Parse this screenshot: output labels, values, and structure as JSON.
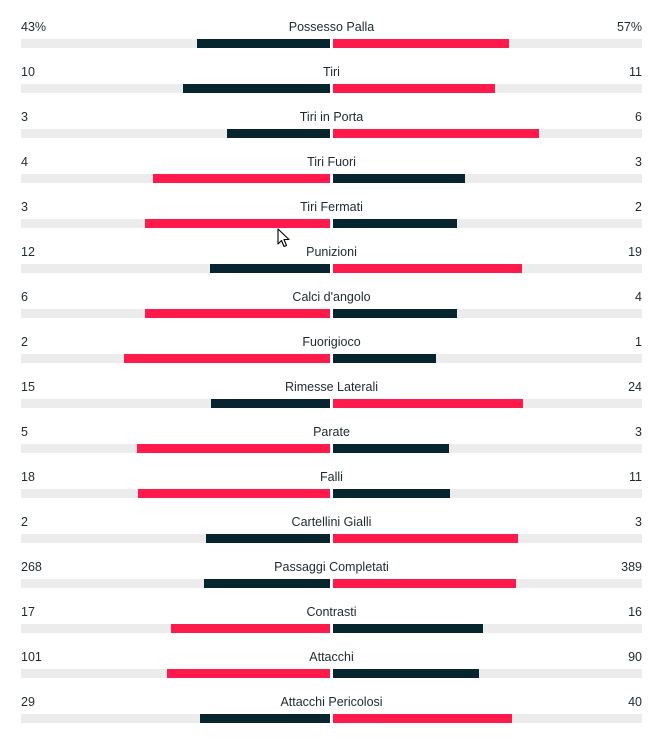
{
  "colors": {
    "leading": "#ff1a4b",
    "trailing": "#06252f",
    "track": "#ececec"
  },
  "stats": [
    {
      "label": "Possesso Palla",
      "home": "43%",
      "away": "57%",
      "home_value": 43,
      "away_value": 57
    },
    {
      "label": "Tiri",
      "home": "10",
      "away": "11",
      "home_value": 10,
      "away_value": 11
    },
    {
      "label": "Tiri in Porta",
      "home": "3",
      "away": "6",
      "home_value": 3,
      "away_value": 6
    },
    {
      "label": "Tiri Fuori",
      "home": "4",
      "away": "3",
      "home_value": 4,
      "away_value": 3
    },
    {
      "label": "Tiri Fermati",
      "home": "3",
      "away": "2",
      "home_value": 3,
      "away_value": 2
    },
    {
      "label": "Punizioni",
      "home": "12",
      "away": "19",
      "home_value": 12,
      "away_value": 19
    },
    {
      "label": "Calci d'angolo",
      "home": "6",
      "away": "4",
      "home_value": 6,
      "away_value": 4
    },
    {
      "label": "Fuorigioco",
      "home": "2",
      "away": "1",
      "home_value": 2,
      "away_value": 1
    },
    {
      "label": "Rimesse Laterali",
      "home": "15",
      "away": "24",
      "home_value": 15,
      "away_value": 24
    },
    {
      "label": "Parate",
      "home": "5",
      "away": "3",
      "home_value": 5,
      "away_value": 3
    },
    {
      "label": "Falli",
      "home": "18",
      "away": "11",
      "home_value": 18,
      "away_value": 11
    },
    {
      "label": "Cartellini Gialli",
      "home": "2",
      "away": "3",
      "home_value": 2,
      "away_value": 3
    },
    {
      "label": "Passaggi Completati",
      "home": "268",
      "away": "389",
      "home_value": 268,
      "away_value": 389
    },
    {
      "label": "Contrasti",
      "home": "17",
      "away": "16",
      "home_value": 17,
      "away_value": 16
    },
    {
      "label": "Attacchi",
      "home": "101",
      "away": "90",
      "home_value": 101,
      "away_value": 90
    },
    {
      "label": "Attacchi Pericolosi",
      "home": "29",
      "away": "40",
      "home_value": 29,
      "away_value": 40
    }
  ]
}
